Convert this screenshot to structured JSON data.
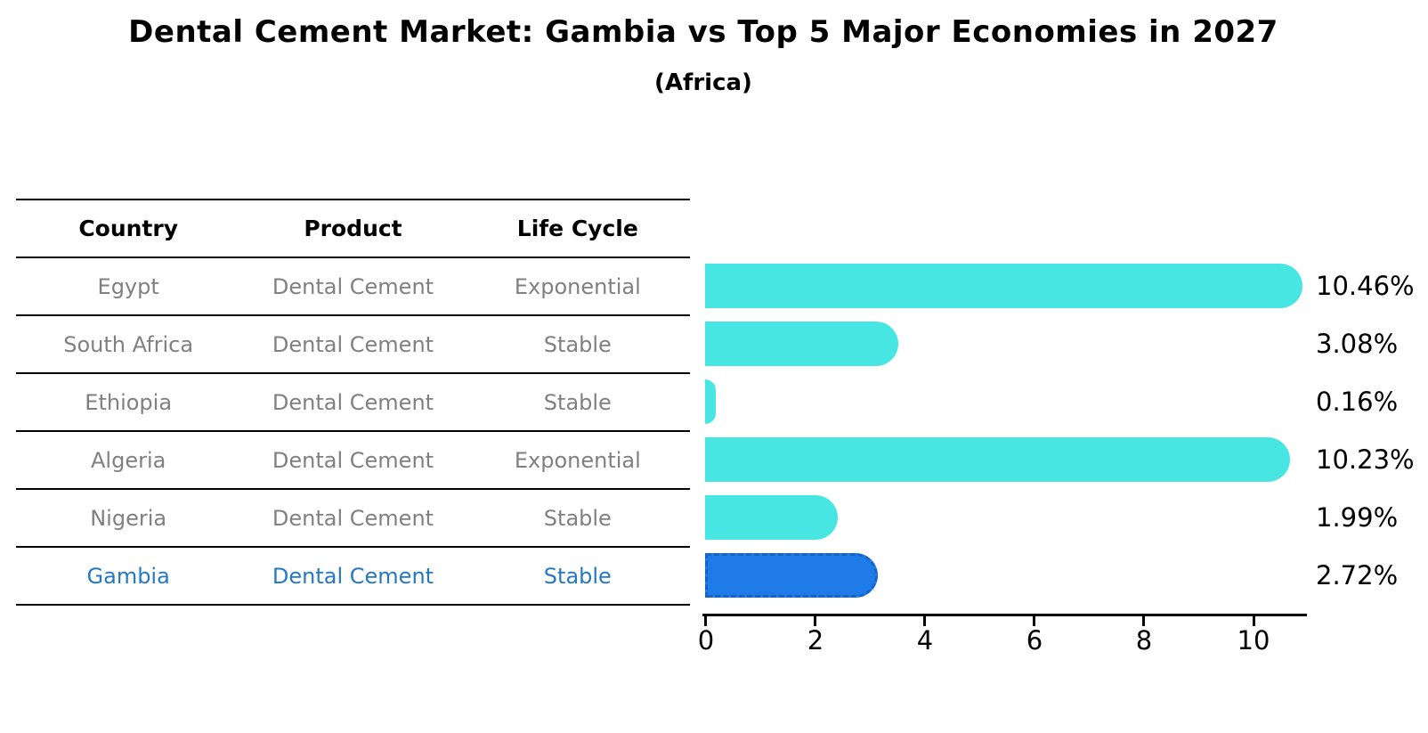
{
  "title": "Dental Cement Market: Gambia vs Top 5 Major Economies in 2027",
  "subtitle": "(Africa)",
  "table": {
    "headers": [
      "Country",
      "Product",
      "Life Cycle"
    ],
    "rows": [
      {
        "country": "Egypt",
        "product": "Dental Cement",
        "life_cycle": "Exponential",
        "highlight": false
      },
      {
        "country": "South Africa",
        "product": "Dental Cement",
        "life_cycle": "Stable",
        "highlight": false
      },
      {
        "country": "Ethiopia",
        "product": "Dental Cement",
        "life_cycle": "Stable",
        "highlight": false
      },
      {
        "country": "Algeria",
        "product": "Dental Cement",
        "life_cycle": "Exponential",
        "highlight": false
      },
      {
        "country": "Nigeria",
        "product": "Dental Cement",
        "life_cycle": "Stable",
        "highlight": false
      },
      {
        "country": "Gambia",
        "product": "Dental Cement",
        "life_cycle": "Stable",
        "highlight": true
      }
    ]
  },
  "chart_data": {
    "type": "bar",
    "orientation": "horizontal",
    "title": "Dental Cement Market: Gambia vs Top 5 Major Economies in 2027 (Africa)",
    "categories": [
      "Egypt",
      "South Africa",
      "Ethiopia",
      "Algeria",
      "Nigeria",
      "Gambia"
    ],
    "values": [
      10.46,
      3.08,
      0.16,
      10.23,
      1.99,
      2.72
    ],
    "value_labels": [
      "10.46%",
      "3.08%",
      "0.16%",
      "10.23%",
      "1.99%",
      "2.72%"
    ],
    "xlabel": "",
    "ylabel": "",
    "xlim": [
      0,
      11
    ],
    "xticks": [
      0,
      2,
      4,
      6,
      8,
      10
    ],
    "grid": false,
    "legend": "none",
    "highlight_index": 5,
    "highlight_style": "dashed-border"
  },
  "colors": {
    "bar_default": "#48E6E3",
    "bar_highlight": "#1E7BE8",
    "bar_highlight_border": "#1565C8",
    "highlight_text": "#2679C0",
    "muted_text": "#808080",
    "text": "#000000"
  }
}
